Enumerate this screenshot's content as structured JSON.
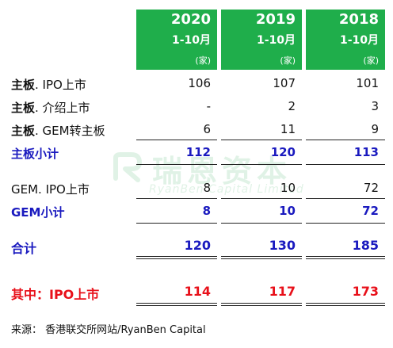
{
  "columns": [
    {
      "year": "2020",
      "period": "1-10月",
      "unit": "(家)"
    },
    {
      "year": "2019",
      "period": "1-10月",
      "unit": "(家)"
    },
    {
      "year": "2018",
      "period": "1-10月",
      "unit": "(家)"
    }
  ],
  "rows": [
    {
      "label_strong": "主板",
      "label_rest": ". IPO上市",
      "values": [
        "106",
        "107",
        "101"
      ]
    },
    {
      "label_strong": "主板",
      "label_rest": ". 介绍上市",
      "values": [
        "-",
        "2",
        "3"
      ]
    },
    {
      "label_strong": "主板",
      "label_rest": ". GEM转主板",
      "values": [
        "6",
        "11",
        "9"
      ]
    },
    {
      "label": "主板小计",
      "values": [
        "112",
        "120",
        "113"
      ]
    },
    {
      "label": "GEM. IPO上市",
      "values": [
        "8",
        "10",
        "72"
      ]
    },
    {
      "label": "GEM小计",
      "values": [
        "8",
        "10",
        "72"
      ]
    },
    {
      "label": "合计",
      "values": [
        "120",
        "130",
        "185"
      ]
    },
    {
      "label": "其中：IPO上市",
      "values": [
        "114",
        "117",
        "173"
      ]
    }
  ],
  "watermark": {
    "cn": "瑞恩资本",
    "en": "RyanBen Capital Limited"
  },
  "source": "来源：  香港联交所网站/RyanBen Capital",
  "colors": {
    "header_green": "#1fae4b",
    "subtotal_blue": "#1a1abf",
    "highlight_red": "#e8101a"
  }
}
